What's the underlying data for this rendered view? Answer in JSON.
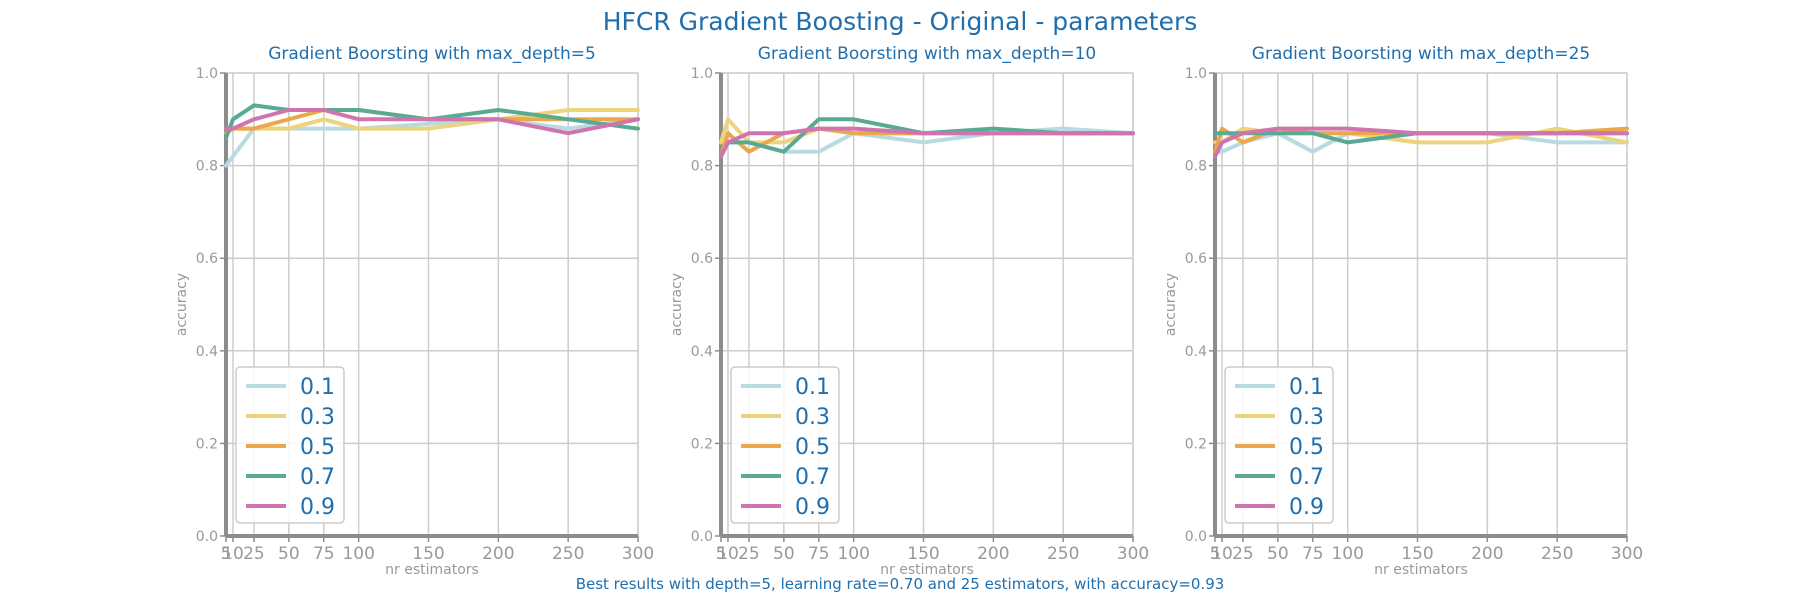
{
  "figure": {
    "title": "HFCR Gradient Boosting - Original - parameters",
    "footer": "Best results with depth=5, learning rate=0.70 and 25 estimators, with accuracy=0.93"
  },
  "colors": {
    "0.1": "#b8dbe1",
    "0.3": "#edd47c",
    "0.5": "#e9a94a",
    "0.7": "#5aaa93",
    "0.9": "#cf74ae",
    "grid": "#cccccc",
    "axis": "#8c8c8c",
    "title": "#1f6fae",
    "tick": "#999999"
  },
  "chart_data": [
    {
      "type": "line",
      "title": "Gradient Boorsting with max_depth=5",
      "xlabel": "nr estimators",
      "ylabel": "accuracy",
      "x": [
        5,
        10,
        25,
        50,
        75,
        100,
        150,
        200,
        250,
        300
      ],
      "xticks": [
        5,
        10,
        25,
        50,
        75,
        100,
        150,
        200,
        250,
        300
      ],
      "xtick_labels": [
        "5",
        "10",
        "25",
        "50",
        "75",
        "100",
        "150",
        "200",
        "250",
        "300"
      ],
      "yticks": [
        0.0,
        0.2,
        0.4,
        0.6,
        0.8,
        1.0
      ],
      "ytick_labels": [
        "0.0",
        "0.2",
        "0.4",
        "0.6",
        "0.8",
        "1.0"
      ],
      "xlim": [
        5,
        300
      ],
      "ylim": [
        0,
        1
      ],
      "grid": true,
      "legend": "lower-left",
      "series": [
        {
          "name": "0.1",
          "values": [
            0.8,
            0.82,
            0.88,
            0.88,
            0.88,
            0.88,
            0.89,
            0.9,
            0.88,
            0.9
          ]
        },
        {
          "name": "0.3",
          "values": [
            0.88,
            0.88,
            0.88,
            0.88,
            0.9,
            0.88,
            0.88,
            0.9,
            0.92,
            0.92
          ]
        },
        {
          "name": "0.5",
          "values": [
            0.87,
            0.88,
            0.88,
            0.9,
            0.92,
            0.92,
            0.9,
            0.9,
            0.9,
            0.9
          ]
        },
        {
          "name": "0.7",
          "values": [
            0.86,
            0.9,
            0.93,
            0.92,
            0.92,
            0.92,
            0.9,
            0.92,
            0.9,
            0.88
          ]
        },
        {
          "name": "0.9",
          "values": [
            0.88,
            0.88,
            0.9,
            0.92,
            0.92,
            0.9,
            0.9,
            0.9,
            0.87,
            0.9
          ]
        }
      ]
    },
    {
      "type": "line",
      "title": "Gradient Boorsting with max_depth=10",
      "xlabel": "nr estimators",
      "ylabel": "accuracy",
      "x": [
        5,
        10,
        25,
        50,
        75,
        100,
        150,
        200,
        250,
        300
      ],
      "xticks": [
        5,
        10,
        25,
        50,
        75,
        100,
        150,
        200,
        250,
        300
      ],
      "xtick_labels": [
        "5",
        "10",
        "25",
        "50",
        "75",
        "100",
        "150",
        "200",
        "250",
        "300"
      ],
      "yticks": [
        0.0,
        0.2,
        0.4,
        0.6,
        0.8,
        1.0
      ],
      "ytick_labels": [
        "0.0",
        "0.2",
        "0.4",
        "0.6",
        "0.8",
        "1.0"
      ],
      "xlim": [
        5,
        300
      ],
      "ylim": [
        0,
        1
      ],
      "grid": true,
      "legend": "lower-left",
      "series": [
        {
          "name": "0.1",
          "values": [
            0.82,
            0.85,
            0.85,
            0.83,
            0.83,
            0.87,
            0.85,
            0.87,
            0.88,
            0.87
          ]
        },
        {
          "name": "0.3",
          "values": [
            0.85,
            0.9,
            0.85,
            0.85,
            0.88,
            0.87,
            0.87,
            0.87,
            0.87,
            0.87
          ]
        },
        {
          "name": "0.5",
          "values": [
            0.82,
            0.87,
            0.83,
            0.87,
            0.88,
            0.87,
            0.87,
            0.87,
            0.87,
            0.87
          ]
        },
        {
          "name": "0.7",
          "values": [
            0.82,
            0.85,
            0.85,
            0.83,
            0.9,
            0.9,
            0.87,
            0.88,
            0.87,
            0.87
          ]
        },
        {
          "name": "0.9",
          "values": [
            0.82,
            0.85,
            0.87,
            0.87,
            0.88,
            0.88,
            0.87,
            0.87,
            0.87,
            0.87
          ]
        }
      ]
    },
    {
      "type": "line",
      "title": "Gradient Boorsting with max_depth=25",
      "xlabel": "nr estimators",
      "ylabel": "accuracy",
      "x": [
        5,
        10,
        25,
        50,
        75,
        100,
        150,
        200,
        250,
        300
      ],
      "xticks": [
        5,
        10,
        25,
        50,
        75,
        100,
        150,
        200,
        250,
        300
      ],
      "xtick_labels": [
        "5",
        "10",
        "25",
        "50",
        "75",
        "100",
        "150",
        "200",
        "250",
        "300"
      ],
      "yticks": [
        0.0,
        0.2,
        0.4,
        0.6,
        0.8,
        1.0
      ],
      "ytick_labels": [
        "0.0",
        "0.2",
        "0.4",
        "0.6",
        "0.8",
        "1.0"
      ],
      "xlim": [
        5,
        300
      ],
      "ylim": [
        0,
        1
      ],
      "grid": true,
      "legend": "lower-left",
      "series": [
        {
          "name": "0.1",
          "values": [
            0.83,
            0.83,
            0.85,
            0.87,
            0.83,
            0.87,
            0.87,
            0.87,
            0.85,
            0.85
          ]
        },
        {
          "name": "0.3",
          "values": [
            0.85,
            0.85,
            0.88,
            0.87,
            0.87,
            0.87,
            0.85,
            0.85,
            0.88,
            0.85
          ]
        },
        {
          "name": "0.5",
          "values": [
            0.83,
            0.88,
            0.85,
            0.88,
            0.87,
            0.87,
            0.87,
            0.87,
            0.87,
            0.88
          ]
        },
        {
          "name": "0.7",
          "values": [
            0.87,
            0.87,
            0.87,
            0.87,
            0.87,
            0.85,
            0.87,
            0.87,
            0.87,
            0.87
          ]
        },
        {
          "name": "0.9",
          "values": [
            0.82,
            0.85,
            0.87,
            0.88,
            0.88,
            0.88,
            0.87,
            0.87,
            0.87,
            0.87
          ]
        }
      ]
    }
  ]
}
